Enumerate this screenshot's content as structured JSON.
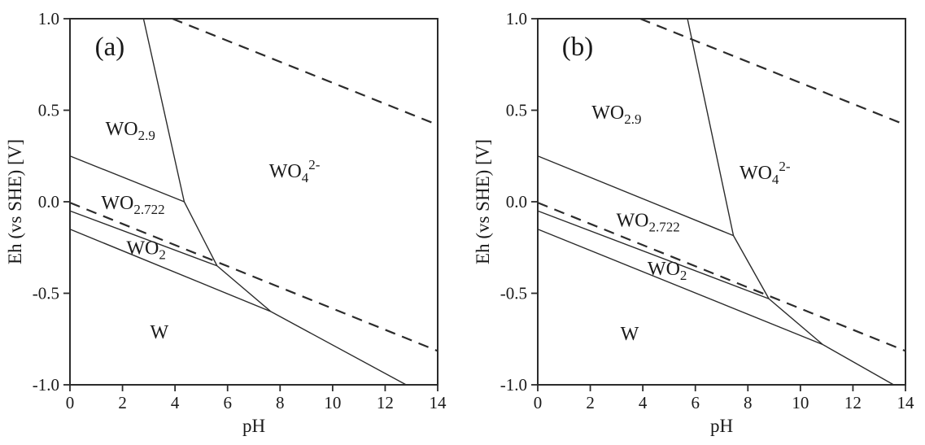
{
  "figure": {
    "background": "#ffffff",
    "line_color": "#2b2b2b",
    "text_color": "#1a1a1a",
    "description": "Pourbaix (Eh-pH) diagrams for tungsten species, panels (a) and (b)"
  },
  "chart_data": [
    {
      "type": "line",
      "panel_id": "a",
      "panel_label": "(a)",
      "xlabel": "pH",
      "ylabel": "Eh (vs SHE) [V]",
      "xlim": [
        0,
        14
      ],
      "ylim": [
        -1.0,
        1.0
      ],
      "xticks": [
        "0",
        "2",
        "4",
        "6",
        "8",
        "10",
        "12",
        "14"
      ],
      "yticks": [
        "1.0",
        "0.5",
        "0.0",
        "-0.5",
        "-1.0"
      ],
      "grid": false,
      "frame": "box",
      "legend": "none",
      "water_lines": [
        {
          "name": "O2-H2O-line",
          "style": "dashed",
          "points": [
            [
              3.9,
              1.0
            ],
            [
              14,
              0.42
            ]
          ]
        },
        {
          "name": "H2-H2O-line",
          "style": "dashed",
          "points": [
            [
              0,
              -0.005
            ],
            [
              14,
              -0.815
            ]
          ]
        }
      ],
      "phase_boundaries": [
        {
          "name": "WO2.9-WO4",
          "style": "solid",
          "points": [
            [
              2.8,
              1.0
            ],
            [
              4.35,
              0.0
            ]
          ]
        },
        {
          "name": "WO2.9-WO2.722",
          "style": "solid",
          "points": [
            [
              0,
              0.25
            ],
            [
              4.35,
              0.0
            ]
          ]
        },
        {
          "name": "WO2.722-WO4",
          "style": "solid",
          "points": [
            [
              4.35,
              0.0
            ],
            [
              5.6,
              -0.35
            ]
          ]
        },
        {
          "name": "WO2.722-WO2",
          "style": "solid",
          "points": [
            [
              0,
              -0.05
            ],
            [
              5.6,
              -0.35
            ]
          ]
        },
        {
          "name": "WO2-WO4",
          "style": "solid",
          "points": [
            [
              5.6,
              -0.35
            ],
            [
              7.65,
              -0.6
            ]
          ]
        },
        {
          "name": "WO2-W",
          "style": "solid",
          "points": [
            [
              0,
              -0.15
            ],
            [
              7.65,
              -0.6
            ]
          ]
        },
        {
          "name": "W-WO4",
          "style": "solid",
          "points": [
            [
              7.65,
              -0.6
            ],
            [
              12.8,
              -1.0
            ]
          ]
        }
      ],
      "region_labels": [
        {
          "name": "WO2.9",
          "x": 2.3,
          "y": 0.4,
          "parts": [
            {
              "t": "WO"
            },
            {
              "t": "2.9",
              "sub": true
            }
          ]
        },
        {
          "name": "WO2.722",
          "x": 2.4,
          "y": -0.005,
          "parts": [
            {
              "t": "WO"
            },
            {
              "t": "2.722",
              "sub": true
            }
          ]
        },
        {
          "name": "WO2",
          "x": 2.9,
          "y": -0.25,
          "parts": [
            {
              "t": "WO"
            },
            {
              "t": "2",
              "sub": true
            }
          ]
        },
        {
          "name": "W",
          "x": 3.4,
          "y": -0.71,
          "parts": [
            {
              "t": "W"
            }
          ]
        },
        {
          "name": "WO4-2-",
          "x": 8.55,
          "y": 0.17,
          "parts": [
            {
              "t": "WO"
            },
            {
              "t": "4",
              "sub": true
            },
            {
              "t": "2-",
              "sup": true
            }
          ]
        }
      ]
    },
    {
      "type": "line",
      "panel_id": "b",
      "panel_label": "(b)",
      "xlabel": "pH",
      "ylabel": "Eh (vs SHE) [V]",
      "xlim": [
        0,
        14
      ],
      "ylim": [
        -1.0,
        1.0
      ],
      "xticks": [
        "0",
        "2",
        "4",
        "6",
        "8",
        "10",
        "12",
        "14"
      ],
      "yticks": [
        "1.0",
        "0.5",
        "0.0",
        "-0.5",
        "-1.0"
      ],
      "grid": false,
      "frame": "box",
      "legend": "none",
      "water_lines": [
        {
          "name": "O2-H2O-line",
          "style": "dashed",
          "points": [
            [
              3.9,
              1.0
            ],
            [
              14,
              0.42
            ]
          ]
        },
        {
          "name": "H2-H2O-line",
          "style": "dashed",
          "points": [
            [
              0,
              -0.005
            ],
            [
              14,
              -0.815
            ]
          ]
        }
      ],
      "phase_boundaries": [
        {
          "name": "WO2.9-WO4",
          "style": "solid",
          "points": [
            [
              5.7,
              1.0
            ],
            [
              7.45,
              -0.185
            ]
          ]
        },
        {
          "name": "WO2.9-WO2.722",
          "style": "solid",
          "points": [
            [
              0,
              0.25
            ],
            [
              7.45,
              -0.185
            ]
          ]
        },
        {
          "name": "WO2.722-WO4",
          "style": "solid",
          "points": [
            [
              7.45,
              -0.185
            ],
            [
              8.8,
              -0.53
            ]
          ]
        },
        {
          "name": "WO2.722-WO2",
          "style": "solid",
          "points": [
            [
              0,
              -0.05
            ],
            [
              8.8,
              -0.53
            ]
          ]
        },
        {
          "name": "WO2-WO4",
          "style": "solid",
          "points": [
            [
              8.8,
              -0.53
            ],
            [
              10.85,
              -0.78
            ]
          ]
        },
        {
          "name": "WO2-W",
          "style": "solid",
          "points": [
            [
              0,
              -0.15
            ],
            [
              10.85,
              -0.78
            ]
          ]
        },
        {
          "name": "W-WO4",
          "style": "solid",
          "points": [
            [
              10.85,
              -0.78
            ],
            [
              13.55,
              -1.0
            ]
          ]
        }
      ],
      "region_labels": [
        {
          "name": "WO2.9",
          "x": 3.0,
          "y": 0.49,
          "parts": [
            {
              "t": "WO"
            },
            {
              "t": "2.9",
              "sub": true
            }
          ]
        },
        {
          "name": "WO2.722",
          "x": 4.2,
          "y": -0.1,
          "parts": [
            {
              "t": "WO"
            },
            {
              "t": "2.722",
              "sub": true
            }
          ]
        },
        {
          "name": "WO2",
          "x": 4.93,
          "y": -0.365,
          "parts": [
            {
              "t": "WO"
            },
            {
              "t": "2",
              "sub": true
            }
          ]
        },
        {
          "name": "W",
          "x": 3.5,
          "y": -0.72,
          "parts": [
            {
              "t": "W"
            }
          ]
        },
        {
          "name": "WO4-2-",
          "x": 8.65,
          "y": 0.16,
          "parts": [
            {
              "t": "WO"
            },
            {
              "t": "4",
              "sub": true
            },
            {
              "t": "2-",
              "sup": true
            }
          ]
        }
      ]
    }
  ]
}
